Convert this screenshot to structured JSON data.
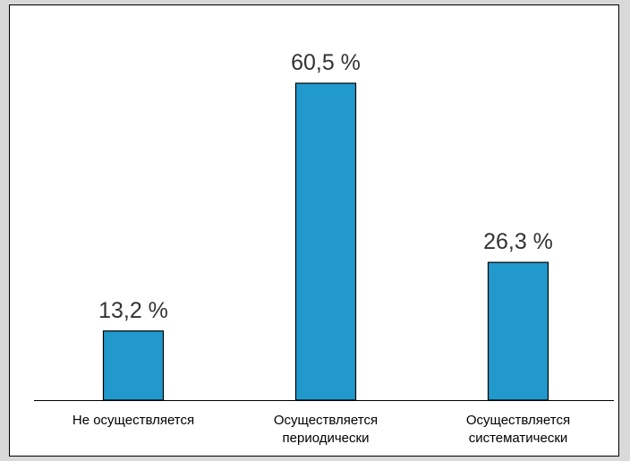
{
  "chart_data": {
    "type": "bar",
    "categories": [
      [
        "Не осуществляется"
      ],
      [
        "Осуществляется",
        "периодически"
      ],
      [
        "Осуществляется",
        "систематически"
      ]
    ],
    "values": [
      13.2,
      60.5,
      26.3
    ],
    "data_labels": [
      "13,2 %",
      "60,5 %",
      "26,3 %"
    ],
    "title": "",
    "xlabel": "",
    "ylabel": "",
    "ylim": [
      0,
      60.5
    ],
    "grid": false,
    "legend": "none",
    "colors": {
      "bar": "#2299cc",
      "bar_stroke": "#000000",
      "axis": "#000000",
      "text": "#000000",
      "label_text": "#333333"
    }
  }
}
